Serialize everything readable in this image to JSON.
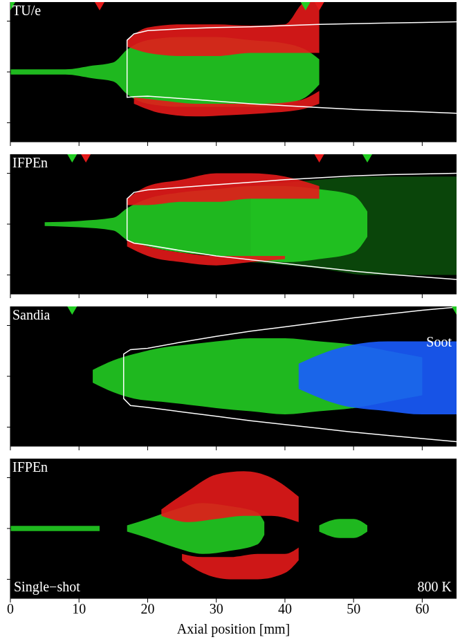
{
  "chart_data": [
    {
      "type": "area",
      "title": "TU/e",
      "xlim": [
        0,
        65
      ],
      "xticks": [
        0,
        10,
        20,
        30,
        40,
        50,
        60
      ],
      "ylim": [
        -11,
        11
      ],
      "yticks": [
        -8,
        0,
        8
      ],
      "tick_labels": false,
      "grid": false,
      "marker": "triangle",
      "markers": [
        {
          "x": 0,
          "color": "#22cc22"
        },
        {
          "x": 43,
          "color": "#22cc22"
        },
        {
          "x": 13,
          "color": "#e41a1a"
        },
        {
          "x": 45,
          "color": "#e41a1a"
        }
      ],
      "series": [
        {
          "type": "area",
          "color": "#22cc22",
          "x": [
            0,
            8,
            12,
            15,
            17,
            20,
            25,
            30,
            35,
            40,
            43,
            45
          ],
          "upper": [
            0.4,
            0.4,
            1,
            1.5,
            3.5,
            5,
            5.5,
            5.5,
            5,
            4.5,
            3.5,
            2
          ],
          "lower": [
            -0.4,
            -0.4,
            -1,
            -1.5,
            -3.5,
            -5,
            -5.5,
            -5.5,
            -5.5,
            -5,
            -4,
            -2
          ]
        },
        {
          "type": "area",
          "color": "#e41a1a",
          "x": [
            17,
            20,
            25,
            30,
            35,
            40,
            43,
            45
          ],
          "upper": [
            5,
            7,
            7.5,
            7.5,
            7.3,
            7.5,
            11,
            11
          ],
          "lower": [
            4,
            3,
            2.5,
            2.5,
            3,
            3,
            3,
            3
          ]
        },
        {
          "type": "area",
          "color": "#e41a1a",
          "x": [
            18,
            22,
            27,
            32,
            37,
            42,
            45
          ],
          "upper": [
            -4,
            -4.5,
            -5,
            -5,
            -5,
            -4.5,
            -3
          ],
          "lower": [
            -5,
            -6.5,
            -7,
            -6.8,
            -6.5,
            -6,
            -5
          ]
        },
        {
          "type": "line",
          "color": "#ffffff",
          "x": [
            17,
            17,
            18,
            20,
            25,
            30,
            35,
            40,
            45,
            50,
            55,
            60,
            65
          ],
          "upper": [
            0,
            5,
            6,
            6.5,
            6.8,
            7,
            7.1,
            7.3,
            7.5,
            7.6,
            7.7,
            7.8,
            7.9
          ],
          "lower": [
            0,
            -4,
            -3.9,
            -3.8,
            -4.2,
            -4.6,
            -5,
            -5.3,
            -5.6,
            -5.9,
            -6.1,
            -6.3,
            -6.5
          ]
        }
      ]
    },
    {
      "type": "area",
      "title": "IFPEn",
      "xlim": [
        0,
        65
      ],
      "xticks": [
        0,
        10,
        20,
        30,
        40,
        50,
        60
      ],
      "ylim": [
        -11,
        11
      ],
      "yticks": [
        -8,
        0,
        8
      ],
      "tick_labels": false,
      "grid": false,
      "marker": "triangle",
      "markers": [
        {
          "x": 9,
          "color": "#22cc22"
        },
        {
          "x": 52,
          "color": "#22cc22"
        },
        {
          "x": 11,
          "color": "#e41a1a"
        },
        {
          "x": 45,
          "color": "#e41a1a"
        }
      ],
      "series": [
        {
          "type": "area",
          "color": "#0b4d0b",
          "x": [
            35,
            45,
            52,
            58,
            65
          ],
          "upper": [
            6,
            7,
            7.5,
            7.5,
            7.5
          ],
          "lower": [
            -6,
            -7,
            -8,
            -8,
            -8
          ]
        },
        {
          "type": "area",
          "color": "#22cc22",
          "x": [
            5,
            10,
            15,
            17,
            20,
            25,
            30,
            35,
            40,
            45,
            50,
            52
          ],
          "upper": [
            0.3,
            0.5,
            1,
            2.5,
            4,
            5,
            5.5,
            6,
            6,
            5.5,
            4.5,
            2
          ],
          "lower": [
            -0.3,
            -0.5,
            -1,
            -2.5,
            -3.5,
            -4.5,
            -5,
            -5.5,
            -6,
            -5.5,
            -4.5,
            -2
          ]
        },
        {
          "type": "area",
          "color": "#e41a1a",
          "x": [
            17,
            20,
            25,
            30,
            35,
            40,
            45
          ],
          "upper": [
            4,
            6,
            7,
            8,
            8,
            7.5,
            6
          ],
          "lower": [
            3,
            3,
            3.5,
            3.5,
            4,
            4,
            4
          ]
        },
        {
          "type": "area",
          "color": "#e41a1a",
          "x": [
            17,
            20,
            25,
            30,
            35,
            40
          ],
          "upper": [
            -2.5,
            -3.5,
            -4.5,
            -5,
            -5,
            -5
          ],
          "lower": [
            -3.5,
            -5,
            -6,
            -6.5,
            -6,
            -5.5
          ]
        },
        {
          "type": "line",
          "color": "#ffffff",
          "x": [
            17,
            17,
            18,
            20,
            25,
            30,
            35,
            40,
            45,
            50,
            55,
            60,
            65
          ],
          "upper": [
            0,
            4,
            5,
            5.4,
            5.8,
            6.2,
            6.6,
            7,
            7.3,
            7.6,
            7.8,
            7.9,
            8
          ],
          "lower": [
            0,
            -2.5,
            -3,
            -3.3,
            -4.2,
            -5,
            -5.6,
            -6.2,
            -6.8,
            -7.4,
            -7.9,
            -8.3,
            -8.7
          ]
        }
      ]
    },
    {
      "type": "area",
      "title": "Sandia",
      "annotations": [
        "Soot"
      ],
      "xlim": [
        0,
        65
      ],
      "xticks": [
        0,
        10,
        20,
        30,
        40,
        50,
        60
      ],
      "ylim": [
        -11,
        11
      ],
      "yticks": [
        -8,
        0,
        8
      ],
      "tick_labels": false,
      "grid": false,
      "marker": "triangle",
      "markers": [
        {
          "x": 9,
          "color": "#22cc22"
        },
        {
          "x": 65,
          "color": "#22cc22"
        }
      ],
      "series": [
        {
          "type": "area",
          "color": "#22cc22",
          "x": [
            12,
            15,
            18,
            22,
            26,
            30,
            35,
            40,
            45,
            50,
            55,
            60
          ],
          "upper": [
            1,
            2.5,
            3.5,
            4.5,
            5,
            5.5,
            6,
            6,
            5.5,
            5,
            4,
            3
          ],
          "lower": [
            -1,
            -2.5,
            -3.5,
            -4,
            -4.5,
            -5,
            -5.5,
            -6,
            -5.5,
            -5,
            -4,
            -3
          ]
        },
        {
          "type": "area",
          "color": "#1a5cff",
          "x": [
            42,
            48,
            55,
            60,
            65
          ],
          "upper": [
            2,
            4.5,
            5.5,
            5.5,
            5.5
          ],
          "lower": [
            -2,
            -4.5,
            -5.5,
            -6,
            -6
          ]
        },
        {
          "type": "line",
          "color": "#ffffff",
          "x": [
            16.5,
            16.5,
            17.5,
            20,
            25,
            30,
            35,
            40,
            45,
            50,
            55,
            60,
            65
          ],
          "upper": [
            0,
            3.5,
            4.2,
            4.4,
            5.4,
            6.3,
            7.1,
            7.8,
            8.5,
            9.2,
            9.8,
            10.4,
            10.9
          ],
          "lower": [
            0,
            -3.5,
            -4.6,
            -4.9,
            -5.6,
            -6.3,
            -7,
            -7.6,
            -8.2,
            -8.8,
            -9.3,
            -9.8,
            -10.3
          ]
        }
      ]
    },
    {
      "type": "area",
      "title": "IFPEn",
      "annotations": [
        "Single−shot",
        "800 K"
      ],
      "xlabel": "Axial position [mm]",
      "xlim": [
        0,
        65
      ],
      "xticks": [
        0,
        10,
        20,
        30,
        40,
        50,
        60
      ],
      "ylim": [
        -11,
        11
      ],
      "yticks": [
        -8,
        0,
        8
      ],
      "tick_labels": "x",
      "grid": false,
      "series": [
        {
          "type": "area",
          "color": "#22cc22",
          "x": [
            0,
            13
          ],
          "upper": [
            0.4,
            0.4
          ],
          "lower": [
            -0.4,
            -0.4
          ]
        },
        {
          "type": "area",
          "color": "#22cc22",
          "x": [
            17,
            20,
            24,
            28,
            32,
            36,
            37
          ],
          "upper": [
            0.5,
            1.5,
            3,
            4,
            3.5,
            2.5,
            1
          ],
          "lower": [
            -0.5,
            -1.5,
            -3,
            -4,
            -3.5,
            -2.5,
            -1
          ]
        },
        {
          "type": "area",
          "color": "#22cc22",
          "x": [
            45,
            48,
            50,
            52
          ],
          "upper": [
            0.5,
            1.5,
            1.5,
            0.5
          ],
          "lower": [
            -0.5,
            -1.5,
            -1.5,
            -0.5
          ]
        },
        {
          "type": "area",
          "color": "#e41a1a",
          "x": [
            22,
            26,
            30,
            34,
            38,
            42
          ],
          "upper": [
            3,
            6,
            8.5,
            9,
            8,
            5
          ],
          "lower": [
            2,
            1,
            1.5,
            2,
            2,
            1
          ]
        },
        {
          "type": "area",
          "color": "#e41a1a",
          "x": [
            25,
            28,
            32,
            36,
            40,
            42
          ],
          "upper": [
            -4,
            -4.5,
            -4.5,
            -4,
            -4,
            -3
          ],
          "lower": [
            -5,
            -7,
            -8,
            -8,
            -7,
            -5
          ]
        }
      ]
    }
  ]
}
